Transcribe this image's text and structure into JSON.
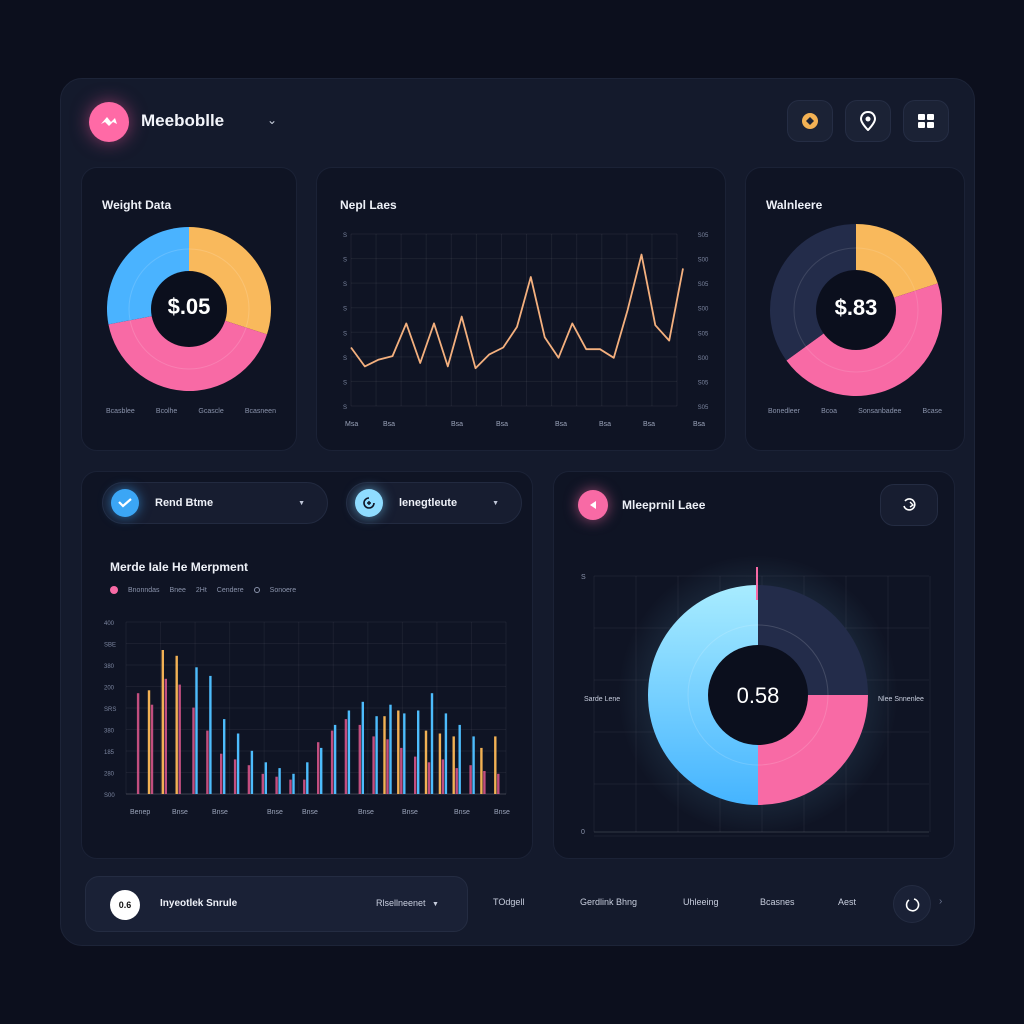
{
  "header": {
    "brand_name": "Meeboblle",
    "icons": [
      "badge-icon",
      "location-pin-icon",
      "grid-icon"
    ]
  },
  "weight_card": {
    "title": "Weight Data",
    "center_value": "$.05",
    "legend": [
      "Bcasblee",
      "Bcolhe",
      "Gcascle",
      "Bcasneen"
    ],
    "chart_data": {
      "type": "pie",
      "values": [
        30,
        42,
        28
      ],
      "colors": [
        "#f9b95c",
        "#f86aa5",
        "#4ab3ff"
      ]
    }
  },
  "line_card": {
    "title": "Nepl Laes",
    "x_labels": [
      "Msa",
      "Bsa",
      "Bsa",
      "Bsa",
      "Bsa",
      "Bsa",
      "Bsa",
      "Bsa"
    ],
    "y_labels_left": [
      "S",
      "S",
      "S",
      "S",
      "S",
      "S",
      "S",
      "S"
    ],
    "y_labels_right": [
      "S05",
      "S00",
      "S05",
      "S00",
      "S05",
      "S00",
      "S05",
      "S05"
    ],
    "chart_data": {
      "type": "line",
      "color": "#f4b07e",
      "y": [
        34,
        23,
        27,
        29,
        48,
        25,
        48,
        23,
        52,
        22,
        30,
        34,
        46,
        75,
        40,
        28,
        48,
        33,
        33,
        28,
        56,
        88,
        47,
        38,
        80
      ]
    }
  },
  "walk_card": {
    "title": "Walnleere",
    "center_value": "$.83",
    "legend": [
      "Bonedleer",
      "Bcoa",
      "Sonsanbadee",
      "Bcase"
    ],
    "chart_data": {
      "type": "pie",
      "values": [
        20,
        45,
        35
      ],
      "colors": [
        "#f9b95c",
        "#f86aa5",
        "#232c4a"
      ]
    }
  },
  "bars_card": {
    "pill_one": "Rend Btme",
    "pill_two": "lenegtleute",
    "subtitle": "Merde Iale He Merpment",
    "legend": [
      "Bnonndas",
      "Bnee",
      "2Ht",
      "Cendere",
      "Sonoere"
    ],
    "y_labels": [
      "400",
      "SBE",
      "380",
      "200",
      "SRS",
      "380",
      "185",
      "280",
      "S00"
    ],
    "x_labels": [
      "Benep",
      "Bnse",
      "Bnse",
      "Bnse",
      "Bnse",
      "Bnse",
      "Bnse",
      "Bnse",
      "Bnse"
    ],
    "chart_data": {
      "type": "bar",
      "series": [
        {
          "color": "#e0588f",
          "values": [
            70,
            62,
            80,
            76,
            60,
            44,
            28,
            24,
            20,
            14,
            12,
            10,
            10,
            36,
            44,
            52,
            48,
            40,
            38,
            32,
            26,
            22,
            24,
            18,
            20,
            16,
            14
          ]
        },
        {
          "color": "#f2b154",
          "values": [
            0,
            72,
            100,
            96,
            0,
            0,
            0,
            0,
            0,
            0,
            0,
            0,
            0,
            0,
            0,
            0,
            0,
            0,
            54,
            58,
            0,
            44,
            42,
            40,
            0,
            32,
            40
          ]
        },
        {
          "color": "#4dbcfc",
          "values": [
            0,
            0,
            0,
            0,
            88,
            82,
            52,
            42,
            30,
            22,
            18,
            14,
            22,
            32,
            48,
            58,
            64,
            54,
            62,
            56,
            58,
            70,
            56,
            48,
            40,
            0,
            0
          ]
        }
      ]
    }
  },
  "donut_card": {
    "title": "Mleeprnil Laee",
    "center_value": "0.58",
    "left_label": "Sarde Lene",
    "right_label": "Nlee Snnenlee",
    "axis_top": "S",
    "axis_bottom": "0",
    "chart_data": {
      "type": "pie",
      "values": [
        25,
        25,
        50
      ],
      "colors": [
        "#232c4a",
        "#f86aa5",
        "#7fd6ff"
      ]
    }
  },
  "bottom_bar": {
    "badge": "0.6",
    "label": "Inyeotlek Snrule",
    "dropdown": "Rlsellneenet",
    "nav": [
      "TOdgell",
      "Gerdlink Bhng",
      "Uhleeing",
      "Bcasnes",
      "Aest"
    ]
  }
}
